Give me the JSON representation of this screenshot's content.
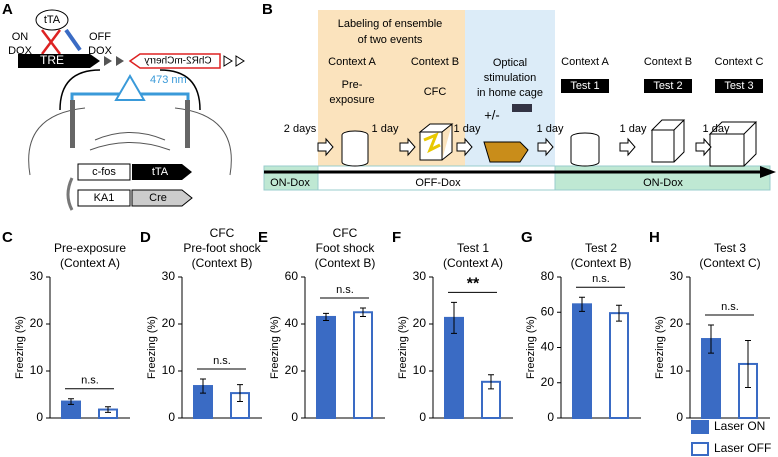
{
  "diagram_a": {
    "letter": "A",
    "tta": "tTA",
    "on_dox": [
      "ON",
      "DOX"
    ],
    "off_dox": [
      "OFF",
      "DOX"
    ],
    "tre": "TRE",
    "chr2": "ChR2-mCherry",
    "laser": "473 nm",
    "cfos": "c-fos",
    "tta_gene": "tTA",
    "ka1": "KA1",
    "cre": "Cre"
  },
  "diagram_b": {
    "letter": "B",
    "labeling": [
      "Labeling of ensemble",
      "of two events"
    ],
    "ctx_a": "Context A",
    "ctx_b": "Context B",
    "pre": [
      "Pre-",
      "exposure"
    ],
    "cfc": "CFC",
    "optical": [
      "Optical",
      "stimulation",
      "in home cage"
    ],
    "plusminus": "+/-",
    "tests": [
      {
        "context": "Context A",
        "label": "Test 1"
      },
      {
        "context": "Context B",
        "label": "Test 2"
      },
      {
        "context": "Context C",
        "label": "Test 3"
      }
    ],
    "intervals": [
      "2 days",
      "1 day",
      "1 day",
      "1 day",
      "1 day",
      "1 day"
    ],
    "dox": [
      "ON-Dox",
      "OFF-Dox",
      "ON-Dox"
    ]
  },
  "legend": [
    {
      "name": "Laser ON",
      "color": "#3a6bc4",
      "filled": true
    },
    {
      "name": "Laser OFF",
      "color": "#3a6bc4",
      "filled": false
    }
  ],
  "chart_data": [
    {
      "type": "bar",
      "panel": "C",
      "title": [
        "Pre-exposure",
        "(Context A)"
      ],
      "ylabel": "Freezing (%)",
      "values": [
        3.5,
        1.8
      ],
      "errors": [
        0.6,
        0.6
      ],
      "ylim": [
        0,
        30
      ],
      "yticks": [
        0,
        10,
        20,
        30
      ],
      "significance": "n.s."
    },
    {
      "type": "bar",
      "panel": "D",
      "title": [
        "CFC",
        "Pre-foot shock",
        "(Context B)"
      ],
      "ylabel": "Freezing (%)",
      "values": [
        6.8,
        5.3
      ],
      "errors": [
        1.5,
        1.8
      ],
      "ylim": [
        0,
        30
      ],
      "yticks": [
        0,
        10,
        20,
        30
      ],
      "significance": "n.s."
    },
    {
      "type": "bar",
      "panel": "E",
      "title": [
        "CFC",
        "Foot shock",
        "(Context B)"
      ],
      "ylabel": "Freezing (%)",
      "values": [
        43,
        45
      ],
      "errors": [
        1.5,
        1.8
      ],
      "ylim": [
        0,
        60
      ],
      "yticks": [
        0,
        20,
        40,
        60
      ],
      "significance": "n.s."
    },
    {
      "type": "bar",
      "panel": "F",
      "title": [
        "Test 1",
        "(Context A)"
      ],
      "ylabel": "Freezing (%)",
      "values": [
        21.3,
        7.7
      ],
      "errors": [
        3.3,
        1.5
      ],
      "ylim": [
        0,
        30
      ],
      "yticks": [
        0,
        10,
        20,
        30
      ],
      "significance": "**"
    },
    {
      "type": "bar",
      "panel": "G",
      "title": [
        "Test 2",
        "(Context B)"
      ],
      "ylabel": "Freezing (%)",
      "values": [
        64.5,
        59.5
      ],
      "errors": [
        4,
        4.5
      ],
      "ylim": [
        0,
        80
      ],
      "yticks": [
        0,
        20,
        40,
        60,
        80
      ],
      "significance": "n.s."
    },
    {
      "type": "bar",
      "panel": "H",
      "title": [
        "Test 3",
        "(Context C)"
      ],
      "ylabel": "Freezing (%)",
      "values": [
        16.8,
        11.5
      ],
      "errors": [
        3,
        5
      ],
      "ylim": [
        0,
        30
      ],
      "yticks": [
        0,
        10,
        20,
        30
      ],
      "significance": "n.s."
    }
  ]
}
